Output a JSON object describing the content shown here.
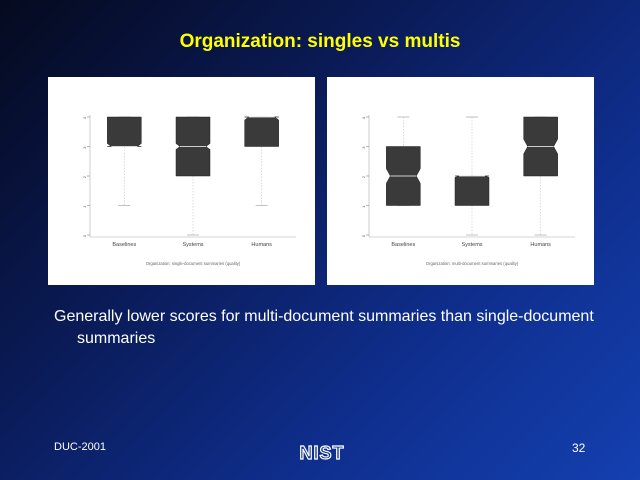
{
  "slide": {
    "title": "Organization: singles vs multis",
    "body": "Generally lower scores for multi-document summaries than single-document summaries",
    "footer_left": "DUC-2001",
    "page_number": "32",
    "logo_text": "NIST"
  },
  "colors": {
    "title": "#ffff00",
    "box_fill": "#3a3a3a",
    "text": "#ffffff"
  },
  "chart_data": [
    {
      "type": "box",
      "title": "",
      "caption": "Organization: single-document summaries (quality)",
      "categories": [
        "Baselines",
        "Systems",
        "Humans"
      ],
      "ylim": [
        0,
        4
      ],
      "yticks": [
        "0",
        "1",
        "2",
        "3",
        "4"
      ],
      "boxes": [
        {
          "min": 1,
          "q1": 3,
          "median": 3,
          "q3": 4,
          "max": 4,
          "notch": 0.1
        },
        {
          "min": 0,
          "q1": 2,
          "median": 3,
          "q3": 4,
          "max": 4,
          "notch": 0.1
        },
        {
          "min": 1,
          "q1": 3,
          "median": 4,
          "q3": 4,
          "max": 4,
          "notch": 0.1
        }
      ]
    },
    {
      "type": "box",
      "title": "",
      "caption": "Organization: multi-document summaries (quality)",
      "categories": [
        "Baselines",
        "Systems",
        "Humans"
      ],
      "ylim": [
        0,
        4
      ],
      "yticks": [
        "0",
        "1",
        "2",
        "3",
        "4"
      ],
      "boxes": [
        {
          "min": 1,
          "q1": 1,
          "median": 2,
          "q3": 3,
          "max": 4,
          "notch": 0.25
        },
        {
          "min": 0,
          "q1": 1,
          "median": 2,
          "q3": 2,
          "max": 4,
          "notch": 0.05
        },
        {
          "min": 0,
          "q1": 2,
          "median": 3,
          "q3": 4,
          "max": 4,
          "notch": 0.25
        }
      ]
    }
  ]
}
